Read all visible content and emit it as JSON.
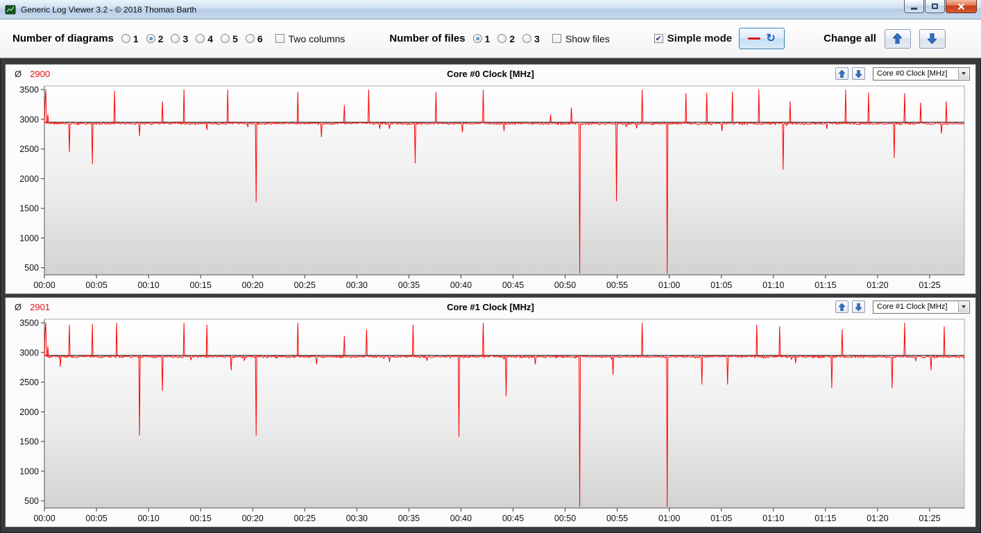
{
  "window": {
    "title": "Generic Log Viewer 3.2 - © 2018 Thomas Barth"
  },
  "toolbar": {
    "diagrams": {
      "label": "Number of diagrams",
      "options": [
        "1",
        "2",
        "3",
        "4",
        "5",
        "6"
      ],
      "selected": "2"
    },
    "two_columns": {
      "label": "Two columns",
      "checked": false
    },
    "files": {
      "label": "Number of files",
      "options": [
        "1",
        "2",
        "3"
      ],
      "selected": "1"
    },
    "show_files": {
      "label": "Show files",
      "checked": false
    },
    "simple_mode": {
      "label": "Simple mode",
      "checked": true
    },
    "change_all": {
      "label": "Change all"
    },
    "accent_color": "#1f63b8",
    "legend_line_color": "#e01212"
  },
  "chart_data": [
    {
      "type": "line",
      "title": "Core #0 Clock [MHz]",
      "avg_symbol": "Ø",
      "average": "2900",
      "selector_value": "Core #0 Clock [MHz]",
      "line_color": "#ff0000",
      "marker_line": 2950,
      "baseline": 2930,
      "noise": 24,
      "ylim": [
        380,
        3560
      ],
      "yticks": [
        500,
        1000,
        1500,
        2000,
        2500,
        3000,
        3500
      ],
      "x_end_seconds": 5300,
      "xtick_seconds": 300,
      "xtick_labels": [
        "00:00",
        "00:05",
        "00:10",
        "00:15",
        "00:20",
        "00:25",
        "00:30",
        "00:35",
        "00:40",
        "00:45",
        "00:50",
        "00:55",
        "01:00",
        "01:05",
        "01:10",
        "01:15",
        "01:20",
        "01:25"
      ],
      "events": [
        [
          0.05,
          3300
        ],
        [
          0.12,
          3500
        ],
        [
          0.3,
          3080
        ],
        [
          2.4,
          2450
        ],
        [
          4.6,
          2250
        ],
        [
          6.7,
          3480
        ],
        [
          9.1,
          2720
        ],
        [
          11.3,
          3300
        ],
        [
          13.4,
          3500
        ],
        [
          15.6,
          2820
        ],
        [
          17.6,
          3500
        ],
        [
          20.3,
          1600
        ],
        [
          24.3,
          3460
        ],
        [
          26.6,
          2700
        ],
        [
          28.8,
          3240
        ],
        [
          31.1,
          3500
        ],
        [
          33.1,
          2840
        ],
        [
          35.6,
          2260
        ],
        [
          37.6,
          3460
        ],
        [
          40.1,
          2780
        ],
        [
          42.1,
          3500
        ],
        [
          44.1,
          2800
        ],
        [
          48.6,
          3080
        ],
        [
          50.6,
          3200
        ],
        [
          51.4,
          400
        ],
        [
          54.9,
          1620
        ],
        [
          57.4,
          3500
        ],
        [
          59.8,
          400
        ],
        [
          61.6,
          3440
        ],
        [
          63.6,
          3450
        ],
        [
          65.1,
          2800
        ],
        [
          66.1,
          3470
        ],
        [
          68.6,
          3500
        ],
        [
          70.9,
          2150
        ],
        [
          71.6,
          3300
        ],
        [
          75.1,
          2840
        ],
        [
          76.9,
          3500
        ],
        [
          79.1,
          3450
        ],
        [
          81.6,
          2350
        ],
        [
          82.6,
          3440
        ],
        [
          84.1,
          3280
        ],
        [
          86.1,
          2760
        ],
        [
          86.6,
          3300
        ]
      ]
    },
    {
      "type": "line",
      "title": "Core #1 Clock [MHz]",
      "avg_symbol": "Ø",
      "average": "2901",
      "selector_value": "Core #1 Clock [MHz]",
      "line_color": "#ff0000",
      "marker_line": 2950,
      "baseline": 2930,
      "noise": 24,
      "ylim": [
        380,
        3560
      ],
      "yticks": [
        500,
        1000,
        1500,
        2000,
        2500,
        3000,
        3500
      ],
      "x_end_seconds": 5300,
      "xtick_seconds": 300,
      "xtick_labels": [
        "00:00",
        "00:05",
        "00:10",
        "00:15",
        "00:20",
        "00:25",
        "00:30",
        "00:35",
        "00:40",
        "00:45",
        "00:50",
        "00:55",
        "01:00",
        "01:05",
        "01:10",
        "01:15",
        "01:20",
        "01:25"
      ],
      "events": [
        [
          0.05,
          3350
        ],
        [
          0.12,
          3500
        ],
        [
          0.3,
          3100
        ],
        [
          1.5,
          2760
        ],
        [
          2.4,
          3470
        ],
        [
          4.6,
          3480
        ],
        [
          6.9,
          3500
        ],
        [
          9.1,
          1600
        ],
        [
          11.3,
          2350
        ],
        [
          13.4,
          3500
        ],
        [
          15.6,
          3470
        ],
        [
          17.9,
          2700
        ],
        [
          20.3,
          1600
        ],
        [
          24.3,
          3500
        ],
        [
          26.1,
          2800
        ],
        [
          28.8,
          3280
        ],
        [
          30.9,
          3390
        ],
        [
          33.1,
          2840
        ],
        [
          35.4,
          3470
        ],
        [
          39.8,
          1580
        ],
        [
          42.1,
          3500
        ],
        [
          44.3,
          2260
        ],
        [
          47.1,
          2800
        ],
        [
          51.4,
          400
        ],
        [
          54.6,
          2620
        ],
        [
          57.4,
          3500
        ],
        [
          59.8,
          400
        ],
        [
          63.1,
          2460
        ],
        [
          65.6,
          2460
        ],
        [
          68.4,
          3470
        ],
        [
          70.6,
          3440
        ],
        [
          72.1,
          2820
        ],
        [
          75.6,
          2400
        ],
        [
          76.6,
          3390
        ],
        [
          81.4,
          2400
        ],
        [
          82.6,
          3500
        ],
        [
          85.1,
          2700
        ],
        [
          86.4,
          3440
        ]
      ]
    }
  ]
}
